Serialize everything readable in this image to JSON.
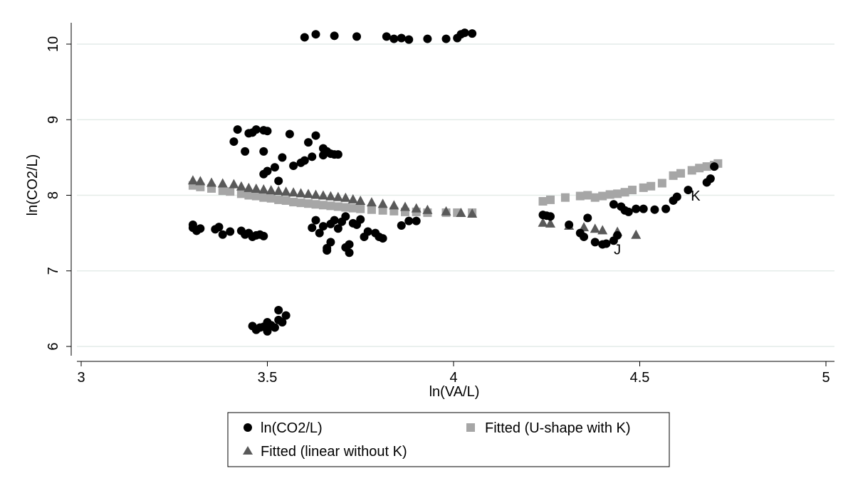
{
  "chart_data": {
    "type": "scatter",
    "xlabel": "ln(VA/L)",
    "ylabel": "ln(CO2/L)",
    "xlim": [
      3,
      5
    ],
    "ylim": [
      5.9,
      10.3
    ],
    "xticks": [
      "3",
      "3.5",
      "4",
      "4.5",
      "5"
    ],
    "yticks": [
      "6",
      "7",
      "8",
      "9",
      "10"
    ],
    "grid": true,
    "legend_placement": "bottom",
    "series": [
      {
        "name": "ln(CO2/L)",
        "marker": "circle",
        "color": "#000000",
        "points": [
          [
            3.6,
            10.09
          ],
          [
            3.63,
            10.13
          ],
          [
            3.68,
            10.11
          ],
          [
            3.74,
            10.1
          ],
          [
            3.82,
            10.1
          ],
          [
            3.84,
            10.07
          ],
          [
            3.86,
            10.08
          ],
          [
            3.88,
            10.06
          ],
          [
            3.93,
            10.07
          ],
          [
            3.98,
            10.07
          ],
          [
            4.01,
            10.08
          ],
          [
            4.02,
            10.13
          ],
          [
            4.03,
            10.15
          ],
          [
            4.05,
            10.14
          ],
          [
            3.41,
            8.71
          ],
          [
            3.42,
            8.87
          ],
          [
            3.44,
            8.58
          ],
          [
            3.45,
            8.82
          ],
          [
            3.46,
            8.83
          ],
          [
            3.47,
            8.87
          ],
          [
            3.49,
            8.58
          ],
          [
            3.49,
            8.86
          ],
          [
            3.5,
            8.85
          ],
          [
            3.49,
            8.28
          ],
          [
            3.5,
            8.32
          ],
          [
            3.52,
            8.37
          ],
          [
            3.53,
            8.19
          ],
          [
            3.54,
            8.5
          ],
          [
            3.56,
            8.81
          ],
          [
            3.57,
            8.39
          ],
          [
            3.59,
            8.43
          ],
          [
            3.6,
            8.46
          ],
          [
            3.62,
            8.51
          ],
          [
            3.63,
            8.79
          ],
          [
            3.61,
            8.7
          ],
          [
            3.65,
            8.62
          ],
          [
            3.65,
            8.53
          ],
          [
            3.66,
            8.58
          ],
          [
            3.67,
            8.55
          ],
          [
            3.68,
            8.54
          ],
          [
            3.69,
            8.54
          ],
          [
            3.3,
            7.61
          ],
          [
            3.31,
            7.53
          ],
          [
            3.3,
            7.57
          ],
          [
            3.32,
            7.56
          ],
          [
            3.36,
            7.55
          ],
          [
            3.37,
            7.58
          ],
          [
            3.38,
            7.48
          ],
          [
            3.4,
            7.52
          ],
          [
            3.43,
            7.53
          ],
          [
            3.44,
            7.48
          ],
          [
            3.45,
            7.5
          ],
          [
            3.46,
            7.45
          ],
          [
            3.47,
            7.47
          ],
          [
            3.48,
            7.48
          ],
          [
            3.49,
            7.46
          ],
          [
            3.62,
            7.57
          ],
          [
            3.63,
            7.67
          ],
          [
            3.64,
            7.5
          ],
          [
            3.65,
            7.59
          ],
          [
            3.66,
            7.3
          ],
          [
            3.66,
            7.27
          ],
          [
            3.67,
            7.38
          ],
          [
            3.67,
            7.62
          ],
          [
            3.68,
            7.67
          ],
          [
            3.69,
            7.56
          ],
          [
            3.7,
            7.65
          ],
          [
            3.71,
            7.72
          ],
          [
            3.71,
            7.31
          ],
          [
            3.72,
            7.24
          ],
          [
            3.72,
            7.35
          ],
          [
            3.73,
            7.63
          ],
          [
            3.74,
            7.61
          ],
          [
            3.75,
            7.68
          ],
          [
            3.76,
            7.45
          ],
          [
            3.77,
            7.52
          ],
          [
            3.79,
            7.5
          ],
          [
            3.8,
            7.45
          ],
          [
            3.81,
            7.43
          ],
          [
            3.86,
            7.6
          ],
          [
            3.88,
            7.66
          ],
          [
            3.9,
            7.66
          ],
          [
            3.46,
            6.27
          ],
          [
            3.47,
            6.22
          ],
          [
            3.48,
            6.25
          ],
          [
            3.49,
            6.26
          ],
          [
            3.5,
            6.32
          ],
          [
            3.5,
            6.2
          ],
          [
            3.51,
            6.28
          ],
          [
            3.52,
            6.25
          ],
          [
            3.53,
            6.48
          ],
          [
            3.53,
            6.35
          ],
          [
            3.54,
            6.32
          ],
          [
            3.55,
            6.41
          ],
          [
            4.24,
            7.74
          ],
          [
            4.25,
            7.73
          ],
          [
            4.26,
            7.72
          ],
          [
            4.31,
            7.61
          ],
          [
            4.34,
            7.5
          ],
          [
            4.35,
            7.45
          ],
          [
            4.36,
            7.7
          ],
          [
            4.38,
            7.38
          ],
          [
            4.4,
            7.35
          ],
          [
            4.41,
            7.36
          ],
          [
            4.43,
            7.4
          ],
          [
            4.44,
            7.47
          ],
          [
            4.43,
            7.88
          ],
          [
            4.45,
            7.85
          ],
          [
            4.46,
            7.8
          ],
          [
            4.47,
            7.78
          ],
          [
            4.49,
            7.82
          ],
          [
            4.51,
            7.82
          ],
          [
            4.54,
            7.81
          ],
          [
            4.57,
            7.82
          ],
          [
            4.59,
            7.93
          ],
          [
            4.6,
            7.98
          ],
          [
            4.63,
            8.07
          ],
          [
            4.68,
            8.17
          ],
          [
            4.69,
            8.22
          ],
          [
            4.7,
            8.38
          ]
        ]
      },
      {
        "name": "Fitted (U-shape with K)",
        "marker": "square",
        "color": "#a6a6a6",
        "points": [
          [
            3.3,
            8.13
          ],
          [
            3.32,
            8.11
          ],
          [
            3.35,
            8.09
          ],
          [
            3.38,
            8.06
          ],
          [
            3.4,
            8.05
          ],
          [
            3.43,
            8.02
          ],
          [
            3.45,
            8.0
          ],
          [
            3.47,
            7.99
          ],
          [
            3.49,
            7.97
          ],
          [
            3.51,
            7.96
          ],
          [
            3.53,
            7.94
          ],
          [
            3.55,
            7.93
          ],
          [
            3.57,
            7.91
          ],
          [
            3.59,
            7.9
          ],
          [
            3.61,
            7.89
          ],
          [
            3.63,
            7.88
          ],
          [
            3.65,
            7.87
          ],
          [
            3.67,
            7.86
          ],
          [
            3.69,
            7.85
          ],
          [
            3.71,
            7.84
          ],
          [
            3.73,
            7.83
          ],
          [
            3.75,
            7.82
          ],
          [
            3.78,
            7.81
          ],
          [
            3.81,
            7.8
          ],
          [
            3.84,
            7.79
          ],
          [
            3.87,
            7.78
          ],
          [
            3.9,
            7.78
          ],
          [
            3.93,
            7.77
          ],
          [
            3.98,
            7.77
          ],
          [
            4.01,
            7.77
          ],
          [
            4.05,
            7.77
          ],
          [
            4.24,
            7.92
          ],
          [
            4.26,
            7.94
          ],
          [
            4.3,
            7.97
          ],
          [
            4.34,
            7.99
          ],
          [
            4.36,
            8.0
          ],
          [
            4.38,
            7.97
          ],
          [
            4.4,
            7.99
          ],
          [
            4.42,
            8.01
          ],
          [
            4.44,
            8.02
          ],
          [
            4.46,
            8.04
          ],
          [
            4.48,
            8.07
          ],
          [
            4.51,
            8.1
          ],
          [
            4.53,
            8.12
          ],
          [
            4.56,
            8.16
          ],
          [
            4.59,
            8.26
          ],
          [
            4.61,
            8.29
          ],
          [
            4.64,
            8.33
          ],
          [
            4.66,
            8.36
          ],
          [
            4.68,
            8.38
          ],
          [
            4.7,
            8.4
          ],
          [
            4.71,
            8.42
          ]
        ]
      },
      {
        "name": "Fitted (linear without K)",
        "marker": "triangle",
        "color": "#595959",
        "points": [
          [
            3.3,
            8.2
          ],
          [
            3.32,
            8.19
          ],
          [
            3.35,
            8.17
          ],
          [
            3.38,
            8.16
          ],
          [
            3.41,
            8.15
          ],
          [
            3.43,
            8.12
          ],
          [
            3.45,
            8.1
          ],
          [
            3.47,
            8.09
          ],
          [
            3.49,
            8.08
          ],
          [
            3.51,
            8.07
          ],
          [
            3.53,
            8.06
          ],
          [
            3.55,
            8.05
          ],
          [
            3.57,
            8.04
          ],
          [
            3.59,
            8.03
          ],
          [
            3.61,
            8.02
          ],
          [
            3.63,
            8.01
          ],
          [
            3.65,
            8.0
          ],
          [
            3.67,
            7.99
          ],
          [
            3.69,
            7.98
          ],
          [
            3.71,
            7.97
          ],
          [
            3.73,
            7.95
          ],
          [
            3.75,
            7.93
          ],
          [
            3.78,
            7.91
          ],
          [
            3.81,
            7.89
          ],
          [
            3.84,
            7.87
          ],
          [
            3.87,
            7.85
          ],
          [
            3.9,
            7.83
          ],
          [
            3.93,
            7.81
          ],
          [
            3.98,
            7.79
          ],
          [
            4.02,
            7.77
          ],
          [
            4.05,
            7.76
          ],
          [
            4.24,
            7.64
          ],
          [
            4.26,
            7.63
          ],
          [
            4.31,
            7.6
          ],
          [
            4.35,
            7.58
          ],
          [
            4.38,
            7.56
          ],
          [
            4.4,
            7.54
          ],
          [
            4.44,
            7.52
          ],
          [
            4.49,
            7.48
          ]
        ]
      }
    ],
    "annotations": [
      {
        "text": "J",
        "x": 4.44,
        "y": 7.22
      },
      {
        "text": "K",
        "x": 4.65,
        "y": 7.93
      }
    ]
  }
}
